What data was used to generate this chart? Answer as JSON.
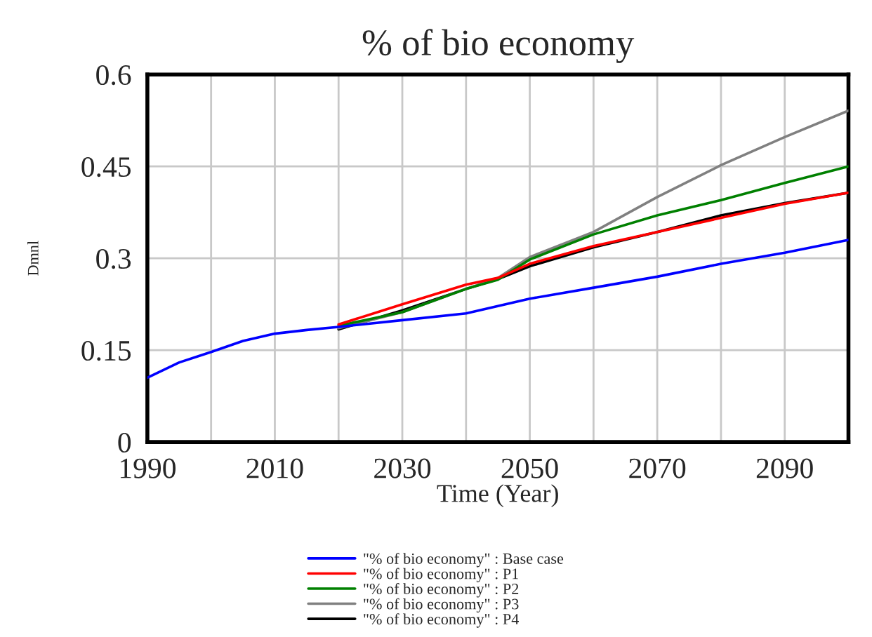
{
  "chart_data": {
    "type": "line",
    "title": "% of bio economy",
    "xlabel": "Time (Year)",
    "ylabel": "Dmnl",
    "x": [
      1990,
      1995,
      2000,
      2005,
      2010,
      2015,
      2020,
      2030,
      2040,
      2045,
      2050,
      2060,
      2070,
      2080,
      2090,
      2100
    ],
    "series": [
      {
        "name": "\"% of bio economy\" : Base case",
        "color": "#0000ff",
        "values": [
          0.105,
          0.13,
          0.147,
          0.165,
          0.177,
          0.183,
          0.188,
          0.199,
          0.21,
          0.222,
          0.234,
          0.252,
          0.27,
          0.291,
          0.309,
          0.33
        ]
      },
      {
        "name": "\"% of bio economy\" : P1",
        "color": "#ff0000",
        "values": [
          null,
          null,
          null,
          null,
          null,
          null,
          0.192,
          0.225,
          0.257,
          0.268,
          0.291,
          0.32,
          0.343,
          0.366,
          0.389,
          0.407
        ]
      },
      {
        "name": "\"% of bio economy\" : P2",
        "color": "#008000",
        "values": [
          null,
          null,
          null,
          null,
          null,
          null,
          0.19,
          0.212,
          0.25,
          0.265,
          0.298,
          0.339,
          0.37,
          0.395,
          0.423,
          0.45
        ]
      },
      {
        "name": "\"% of bio economy\" : P3",
        "color": "#808080",
        "values": [
          null,
          null,
          null,
          null,
          null,
          null,
          0.186,
          0.212,
          0.25,
          0.268,
          0.302,
          0.343,
          0.4,
          0.452,
          0.498,
          0.541
        ]
      },
      {
        "name": "\"% of bio economy\" : P4",
        "color": "#000000",
        "values": [
          null,
          null,
          null,
          null,
          null,
          null,
          0.184,
          0.215,
          0.25,
          0.266,
          0.287,
          0.318,
          0.343,
          0.37,
          0.39,
          0.407
        ]
      }
    ],
    "xlim": [
      1990,
      2100
    ],
    "xticks": [
      1990,
      {
        "value": 2000,
        "label": null
      },
      2010,
      {
        "value": 2020,
        "label": null
      },
      2030,
      {
        "value": 2040,
        "label": null
      },
      2050,
      {
        "value": 2060,
        "label": null
      },
      2070,
      {
        "value": 2080,
        "label": null
      },
      2090,
      {
        "value": 2100,
        "label": null
      }
    ],
    "ylim": [
      0,
      0.6
    ],
    "yticks": [
      0,
      0.15,
      0.3,
      0.45,
      0.6
    ],
    "grid": true,
    "legend": "bottom",
    "line_style": "solid"
  }
}
